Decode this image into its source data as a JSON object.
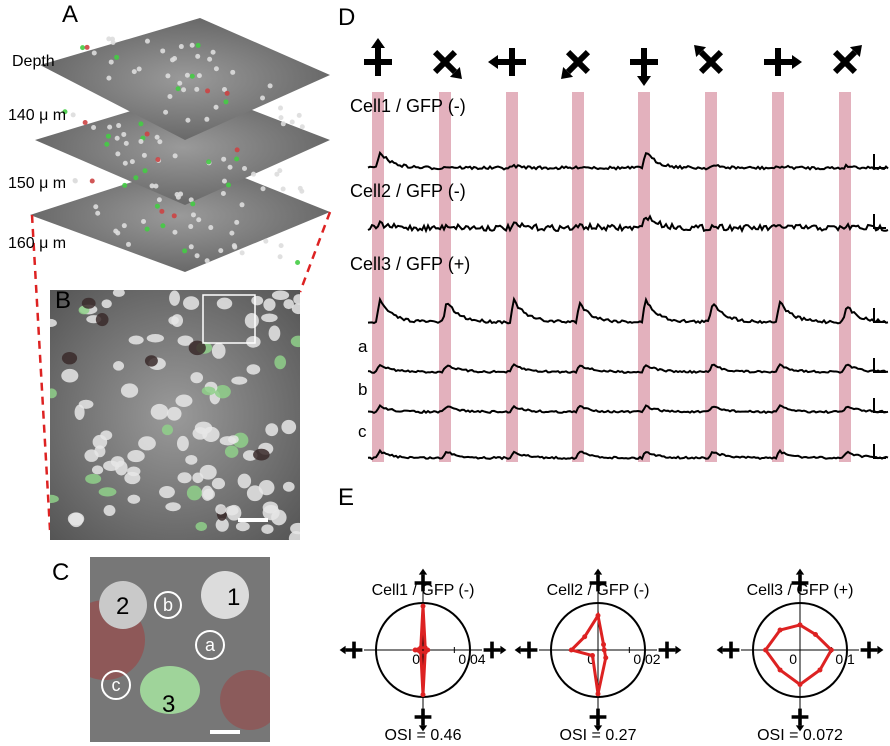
{
  "panel_a": {
    "label": "A",
    "depth_label": "Depth",
    "depths": [
      "140 μ m",
      "150 μ m",
      "160 μ m"
    ]
  },
  "panel_b": {
    "label": "B"
  },
  "panel_c": {
    "label": "C",
    "cells": [
      "1",
      "2",
      "3"
    ],
    "neurons": [
      "a",
      "b",
      "c"
    ]
  },
  "panel_d": {
    "label": "D",
    "traces": [
      "Cell1 / GFP (-)",
      "Cell2 / GFP (-)",
      "Cell3 / GFP (+)",
      "a",
      "b",
      "c"
    ]
  },
  "panel_e": {
    "label": "E",
    "plots": [
      {
        "title": "Cell1 / GFP (-)",
        "rlim": [
          0,
          0.06
        ],
        "rticks": [
          0,
          0.04
        ],
        "angles": [
          0,
          45,
          90,
          135,
          180,
          225,
          270,
          315
        ],
        "values": [
          0.006,
          0.004,
          0.056,
          0.004,
          0.01,
          0.004,
          0.057,
          0.004
        ],
        "osi": "OSI = 0.46"
      },
      {
        "title": "Cell2 / GFP (-)",
        "rlim": [
          0,
          0.03
        ],
        "rticks": [
          0,
          0.02
        ],
        "angles": [
          0,
          45,
          90,
          135,
          180,
          225,
          270,
          315
        ],
        "values": [
          0.004,
          0.005,
          0.022,
          0.012,
          0.017,
          0.005,
          0.028,
          0.007
        ],
        "osi": "OSI = 0.27"
      },
      {
        "title": "Cell3 / GFP (+)",
        "rlim": [
          0,
          0.15
        ],
        "rticks": [
          0,
          0.1
        ],
        "angles": [
          0,
          45,
          90,
          135,
          180,
          225,
          270,
          315
        ],
        "values": [
          0.1,
          0.07,
          0.08,
          0.09,
          0.11,
          0.09,
          0.11,
          0.09
        ],
        "osi": "OSI = 0.072"
      }
    ]
  }
}
